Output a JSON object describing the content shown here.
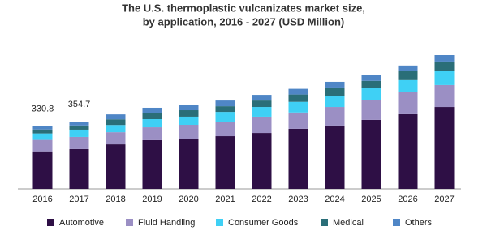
{
  "chart_data": {
    "type": "stacked_bar",
    "title": [
      "The U.S. thermoplastic vulcanizates market size,",
      "by application, 2016 - 2027 (USD Million)"
    ],
    "categories": [
      "2016",
      "2017",
      "2018",
      "2019",
      "2020",
      "2021",
      "2022",
      "2023",
      "2024",
      "2025",
      "2026",
      "2027"
    ],
    "series": [
      {
        "name": "Automotive",
        "color": "#2e0f45",
        "values": [
          198,
          210,
          235,
          257,
          265,
          278,
          295,
          317,
          334,
          364,
          394,
          432
        ]
      },
      {
        "name": "Fluid Handling",
        "color": "#9b8fc4",
        "values": [
          60.5,
          64,
          64,
          68,
          73,
          77,
          86,
          86,
          98,
          103,
          116,
          116
        ]
      },
      {
        "name": "Consumer Goods",
        "color": "#3fd0f5",
        "values": [
          34,
          38.5,
          38,
          43,
          43,
          51,
          51,
          56,
          60,
          64,
          64,
          73
        ]
      },
      {
        "name": "Medical",
        "color": "#2a6e78",
        "values": [
          21,
          22,
          30,
          30,
          34,
          30,
          34,
          39,
          43,
          39,
          47,
          51
        ]
      },
      {
        "name": "Others",
        "color": "#4f86c6",
        "values": [
          17.3,
          20.2,
          26,
          30,
          30,
          30,
          30,
          30,
          30,
          30,
          30,
          34
        ]
      }
    ],
    "total_labels": [
      330.8,
      354.7,
      null,
      null,
      null,
      null,
      null,
      null,
      null,
      null,
      null,
      null
    ],
    "legend": "bottom"
  }
}
